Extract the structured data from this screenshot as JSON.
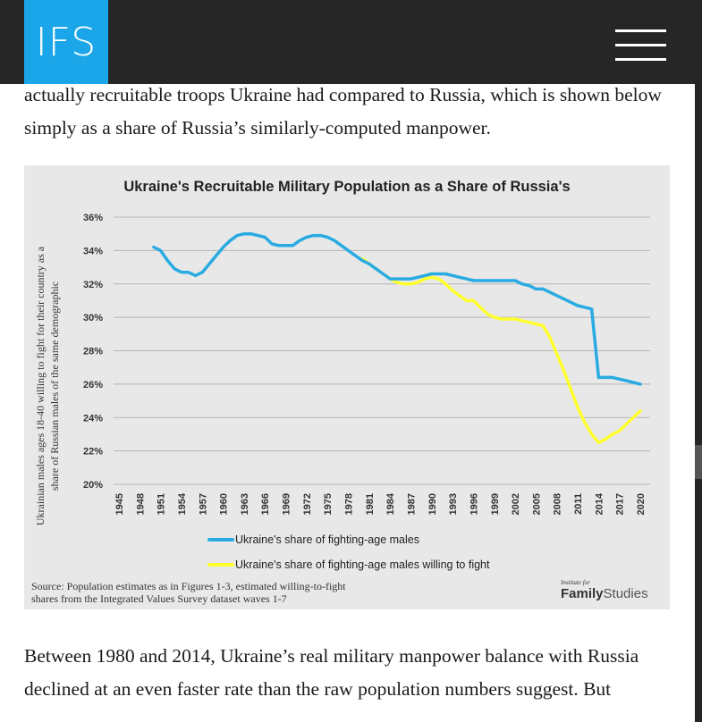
{
  "header": {
    "logo_text": "IFS"
  },
  "article": {
    "paragraph_top": "actually recruitable troops Ukraine had compared to Russia, which is shown below simply as a share of Russia’s similarly-computed manpower.",
    "paragraph_bottom": "Between 1980 and 2014, Ukraine’s real military manpower balance with Russia declined at an even faster rate than the raw population numbers suggest. But"
  },
  "figure": {
    "source_line1": "Source: Population estimates as in Figures 1-3, estimated willing-to-fight",
    "source_line2": "shares from the Integrated Values Survey dataset waves 1-7",
    "logo_small": "Institute for",
    "logo_bold": "Family",
    "logo_light": "Studies"
  },
  "chart_data": {
    "type": "line",
    "title": "Ukraine's Recruitable Military Population as a Share of Russia's",
    "ylabel_line1": "Ukrainian males ages 18-40 willing to fight for their country as a",
    "ylabel_line2": "share of Russian males of the same demographic",
    "xlabel": "",
    "xlim": [
      1945,
      2020
    ],
    "ylim": [
      20,
      36
    ],
    "yticks": [
      20,
      22,
      24,
      26,
      28,
      30,
      32,
      34,
      36
    ],
    "ytick_labels": [
      "20%",
      "22%",
      "24%",
      "26%",
      "28%",
      "30%",
      "32%",
      "34%",
      "36%"
    ],
    "xticks": [
      1945,
      1948,
      1951,
      1954,
      1957,
      1960,
      1963,
      1966,
      1969,
      1972,
      1975,
      1978,
      1981,
      1984,
      1987,
      1990,
      1993,
      1996,
      1999,
      2002,
      2005,
      2008,
      2011,
      2014,
      2017,
      2020
    ],
    "grid": true,
    "legend_position": "bottom",
    "series": [
      {
        "name": "Ukraine's share of fighting-age males",
        "color": "#29abe2",
        "x": [
          1950,
          1951,
          1952,
          1953,
          1954,
          1955,
          1956,
          1957,
          1958,
          1959,
          1960,
          1961,
          1962,
          1963,
          1964,
          1965,
          1966,
          1967,
          1968,
          1969,
          1970,
          1971,
          1972,
          1973,
          1974,
          1975,
          1976,
          1977,
          1978,
          1979,
          1980,
          1981,
          1982,
          1983,
          1984,
          1985,
          1986,
          1987,
          1988,
          1989,
          1990,
          1991,
          1992,
          1993,
          1994,
          1995,
          1996,
          1997,
          1998,
          1999,
          2000,
          2001,
          2002,
          2003,
          2004,
          2005,
          2006,
          2007,
          2008,
          2009,
          2010,
          2011,
          2012,
          2013,
          2014,
          2015,
          2016,
          2017,
          2018,
          2019,
          2020
        ],
        "values": [
          34.2,
          34.0,
          33.4,
          32.9,
          32.7,
          32.7,
          32.5,
          32.7,
          33.2,
          33.7,
          34.2,
          34.6,
          34.9,
          35.0,
          35.0,
          34.9,
          34.8,
          34.4,
          34.3,
          34.3,
          34.3,
          34.6,
          34.8,
          34.9,
          34.9,
          34.8,
          34.6,
          34.3,
          34.0,
          33.7,
          33.4,
          33.2,
          32.9,
          32.6,
          32.3,
          32.3,
          32.3,
          32.3,
          32.4,
          32.5,
          32.6,
          32.6,
          32.6,
          32.5,
          32.4,
          32.3,
          32.2,
          32.2,
          32.2,
          32.2,
          32.2,
          32.2,
          32.2,
          32.0,
          31.9,
          31.7,
          31.7,
          31.5,
          31.3,
          31.1,
          30.9,
          30.7,
          30.6,
          30.5,
          26.4,
          26.4,
          26.4,
          26.3,
          26.2,
          26.1,
          26.0
        ]
      },
      {
        "name": "Ukraine's share of fighting-age males willing to fight",
        "color": "#ffff2e",
        "x": [
          1980,
          1981,
          1982,
          1983,
          1984,
          1985,
          1986,
          1987,
          1988,
          1989,
          1990,
          1991,
          1992,
          1993,
          1994,
          1995,
          1996,
          1997,
          1998,
          1999,
          2000,
          2001,
          2002,
          2003,
          2004,
          2005,
          2006,
          2007,
          2008,
          2009,
          2010,
          2011,
          2012,
          2013,
          2014,
          2015,
          2016,
          2017,
          2018,
          2019,
          2020
        ],
        "values": [
          33.5,
          33.2,
          32.9,
          32.6,
          32.3,
          32.1,
          32.0,
          32.0,
          32.1,
          32.3,
          32.4,
          32.3,
          32.0,
          31.6,
          31.3,
          31.0,
          31.0,
          30.6,
          30.2,
          30.0,
          29.9,
          29.9,
          29.9,
          29.8,
          29.7,
          29.6,
          29.5,
          28.8,
          27.8,
          26.8,
          25.7,
          24.6,
          23.7,
          23.0,
          22.5,
          22.7,
          23.0,
          23.2,
          23.6,
          24.0,
          24.4
        ]
      }
    ]
  }
}
